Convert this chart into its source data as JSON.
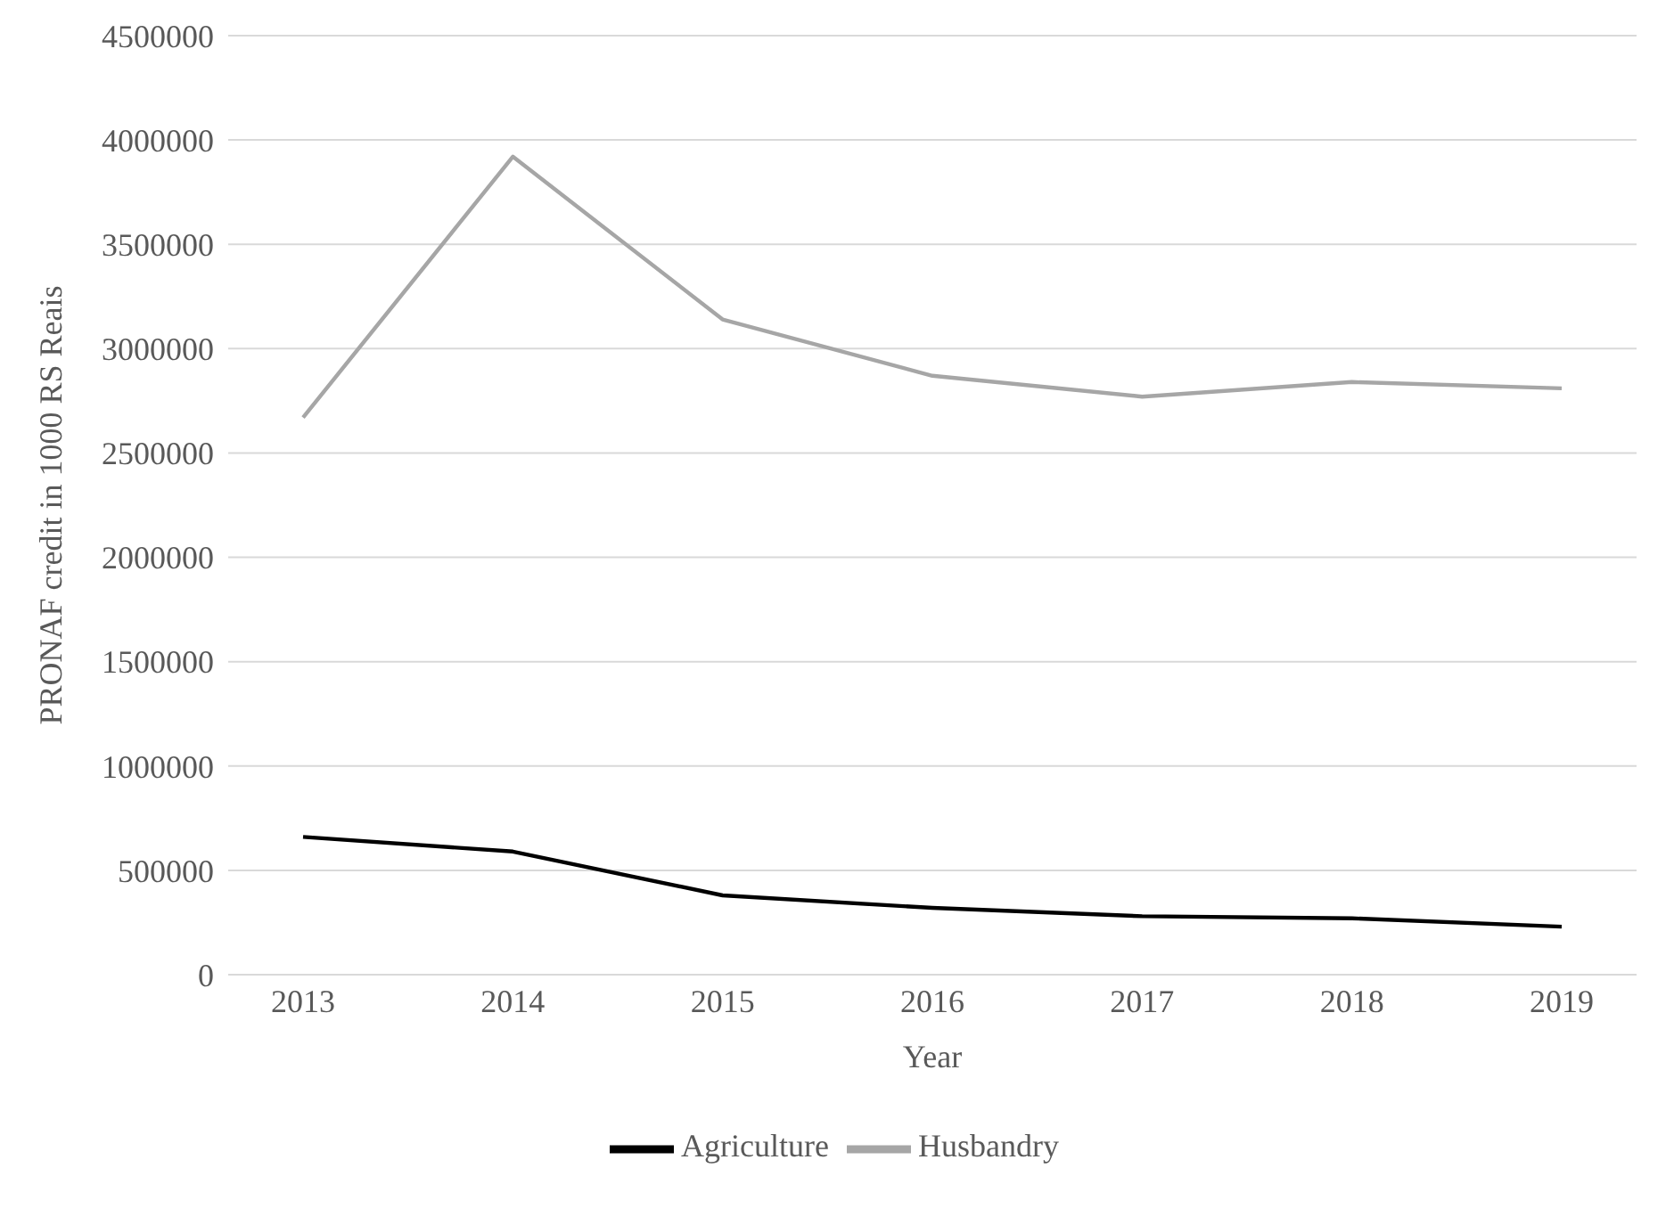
{
  "chart_data": {
    "type": "line",
    "xlabel": "Year",
    "ylabel": "PRONAF credit in 1000 RS Reais",
    "categories": [
      "2013",
      "2014",
      "2015",
      "2016",
      "2017",
      "2018",
      "2019"
    ],
    "series": [
      {
        "name": "Agriculture",
        "color": "#000000",
        "values": [
          660000,
          590000,
          380000,
          320000,
          280000,
          270000,
          230000
        ]
      },
      {
        "name": "Husbandry",
        "color": "#a6a6a6",
        "values": [
          2670000,
          3920000,
          3140000,
          2870000,
          2770000,
          2840000,
          2810000
        ]
      }
    ],
    "ylim": [
      0,
      4500000
    ],
    "yticks": [
      0,
      500000,
      1000000,
      1500000,
      2000000,
      2500000,
      3000000,
      3500000,
      4000000,
      4500000
    ],
    "grid": "y",
    "legend": "bottom",
    "marker": "none",
    "line_style": "solid"
  }
}
